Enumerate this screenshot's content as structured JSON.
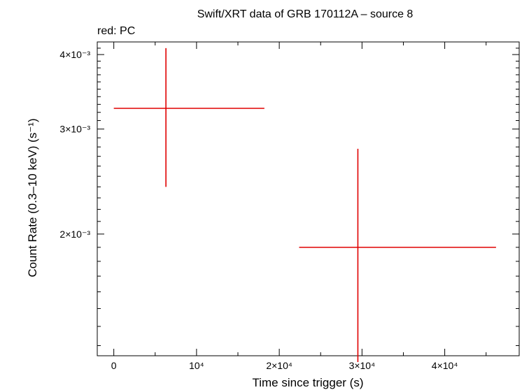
{
  "chart_data": {
    "type": "scatter",
    "title": "Swift/XRT data of GRB 170112A – source 8",
    "subtitle": "red: PC",
    "xlabel": "Time since trigger (s)",
    "ylabel": "Count Rate (0.3–10 keV) (s⁻¹)",
    "xlim": [
      -2000,
      49000
    ],
    "ylim": [
      0.00125,
      0.0042
    ],
    "y_scale": "log",
    "grid": false,
    "x_ticks": [
      {
        "value": 0,
        "label": "0"
      },
      {
        "value": 10000,
        "label": "10⁴"
      },
      {
        "value": 20000,
        "label": "2×10⁴"
      },
      {
        "value": 30000,
        "label": "3×10⁴"
      },
      {
        "value": 40000,
        "label": "4×10⁴"
      }
    ],
    "y_ticks": [
      {
        "value": 0.002,
        "label": "2×10⁻³"
      },
      {
        "value": 0.003,
        "label": "3×10⁻³"
      },
      {
        "value": 0.004,
        "label": "4×10⁻³"
      }
    ],
    "series": [
      {
        "color": "#e00000",
        "points": [
          {
            "x": 6300,
            "xlo": 0,
            "xhi": 18200,
            "y": 0.00325,
            "ylo": 0.0024,
            "yhi": 0.0041
          },
          {
            "x": 29500,
            "xlo": 22400,
            "xhi": 46200,
            "y": 0.0019,
            "ylo": 0.00122,
            "yhi": 0.00278
          }
        ]
      }
    ]
  }
}
